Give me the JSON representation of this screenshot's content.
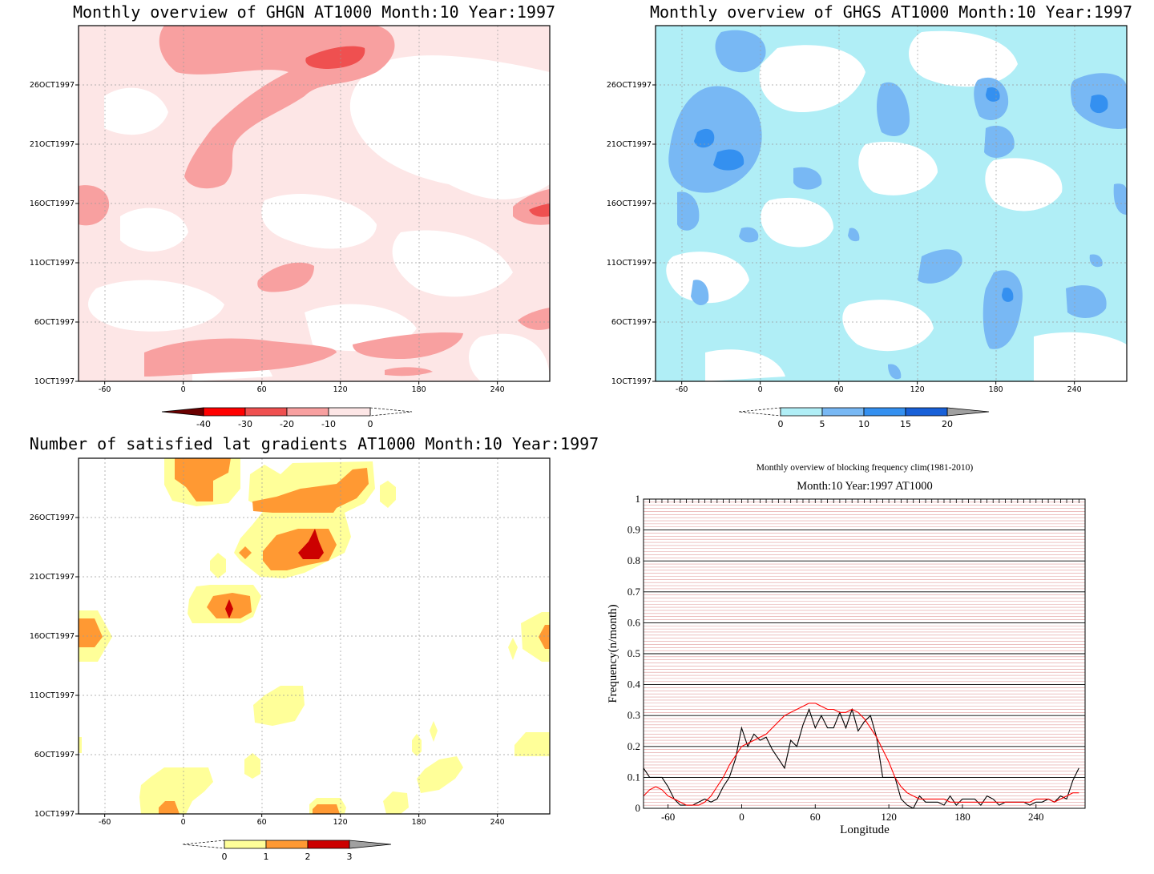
{
  "chart_data": [
    {
      "type": "heatmap",
      "title": "Monthly overview of GHGN AT1000 Month:10 Year:1997",
      "xlabel": "",
      "ylabel": "",
      "x_ticks": [
        "-60",
        "0",
        "60",
        "120",
        "180",
        "240"
      ],
      "y_ticks": [
        "1OCT1997",
        "6OCT1997",
        "11OCT1997",
        "16OCT1997",
        "21OCT1997",
        "26OCT1997"
      ],
      "xlim": [
        -80,
        280
      ],
      "ylim": [
        1,
        31
      ],
      "colorbar": {
        "levels": [
          "-40",
          "-30",
          "-20",
          "-10",
          "0"
        ],
        "colors": [
          "#6b0000",
          "#ff0000",
          "#ef5050",
          "#f8a0a0",
          "#fde6e6"
        ]
      },
      "regions": [
        {
          "level": "0 to -10",
          "color": "#fde6e6",
          "coverage": "background"
        },
        {
          "level": "-10 to -20",
          "color": "#f8a0a0",
          "coverage": "diagonal band and patches"
        },
        {
          "level": "-20 to -30",
          "color": "#ef5050",
          "coverage": "small cores near 26-29OCT lon 95-140 and 16OCT lon 260"
        }
      ]
    },
    {
      "type": "heatmap",
      "title": "Monthly overview of GHGS AT1000 Month:10 Year:1997",
      "xlabel": "",
      "ylabel": "",
      "x_ticks": [
        "-60",
        "0",
        "60",
        "120",
        "180",
        "240"
      ],
      "y_ticks": [
        "1OCT1997",
        "6OCT1997",
        "11OCT1997",
        "16OCT1997",
        "21OCT1997",
        "26OCT1997"
      ],
      "xlim": [
        -80,
        280
      ],
      "ylim": [
        1,
        31
      ],
      "colorbar": {
        "levels": [
          "0",
          "5",
          "10",
          "15",
          "20"
        ],
        "colors": [
          "#b0eef6",
          "#78b8f4",
          "#3490f0",
          "#1860d8",
          "#a0a0a0"
        ]
      },
      "regions": [
        {
          "level": "0 to 5",
          "color": "#b0eef6",
          "coverage": "background"
        },
        {
          "level": "5 to 10",
          "color": "#78b8f4",
          "coverage": "scattered patches"
        },
        {
          "level": "10 to 15",
          "color": "#3490f0",
          "coverage": "small cores"
        }
      ]
    },
    {
      "type": "heatmap",
      "title": "Number of satisfied lat gradients AT1000 Month:10 Year:1997",
      "xlabel": "",
      "ylabel": "",
      "x_ticks": [
        "-60",
        "0",
        "60",
        "120",
        "180",
        "240"
      ],
      "y_ticks": [
        "1OCT1997",
        "6OCT1997",
        "11OCT1997",
        "16OCT1997",
        "21OCT1997",
        "26OCT1997"
      ],
      "xlim": [
        -80,
        280
      ],
      "ylim": [
        1,
        31
      ],
      "colorbar": {
        "levels": [
          "0",
          "1",
          "2",
          "3"
        ],
        "colors": [
          "#ffff99",
          "#ff9933",
          "#cc0000",
          "#a0a0a0"
        ]
      },
      "regions": [
        {
          "level": "0 to 1",
          "color": "#ffff99",
          "coverage": "patches"
        },
        {
          "level": "1 to 2",
          "color": "#ff9933",
          "coverage": "cores"
        },
        {
          "level": "2 to 3",
          "color": "#cc0000",
          "coverage": "two small peaks near 24OCT lon 95 and 19OCT lon 35"
        }
      ]
    },
    {
      "type": "line",
      "title": "Monthly overview of blocking frequency clim(1981-2010)",
      "subtitle": "Month:10 Year:1997  AT1000",
      "xlabel": "Longitude",
      "ylabel": "Frequency(n/month)",
      "xlim": [
        -80,
        280
      ],
      "ylim": [
        0,
        1
      ],
      "x_ticks": [
        "-60",
        "0",
        "60",
        "120",
        "180",
        "240"
      ],
      "y_ticks": [
        "0",
        "0.1",
        "0.2",
        "0.3",
        "0.4",
        "0.5",
        "0.6",
        "0.7",
        "0.8",
        "0.9",
        "1"
      ],
      "grid": true,
      "series": [
        {
          "color": "#000000",
          "x": [
            -80,
            -75,
            -70,
            -65,
            -60,
            -55,
            -50,
            -45,
            -40,
            -35,
            -30,
            -25,
            -20,
            -15,
            -10,
            -5,
            0,
            5,
            10,
            15,
            20,
            25,
            30,
            35,
            40,
            45,
            50,
            55,
            60,
            65,
            70,
            75,
            80,
            85,
            90,
            95,
            100,
            105,
            110,
            115,
            120,
            125,
            130,
            135,
            140,
            145,
            150,
            155,
            160,
            165,
            170,
            175,
            180,
            185,
            190,
            195,
            200,
            205,
            210,
            215,
            220,
            225,
            230,
            235,
            240,
            245,
            250,
            255,
            260,
            265,
            270,
            275
          ],
          "y": [
            0.13,
            0.1,
            0.1,
            0.1,
            0.07,
            0.03,
            0.01,
            0.01,
            0.01,
            0.02,
            0.03,
            0.02,
            0.03,
            0.07,
            0.1,
            0.16,
            0.26,
            0.2,
            0.24,
            0.22,
            0.23,
            0.19,
            0.16,
            0.13,
            0.22,
            0.2,
            0.27,
            0.32,
            0.26,
            0.3,
            0.26,
            0.26,
            0.31,
            0.26,
            0.32,
            0.25,
            0.28,
            0.3,
            0.23,
            0.1,
            0.1,
            0.1,
            0.03,
            0.01,
            0.0,
            0.04,
            0.02,
            0.02,
            0.02,
            0.01,
            0.04,
            0.01,
            0.03,
            0.03,
            0.03,
            0.01,
            0.04,
            0.03,
            0.01,
            0.02,
            0.02,
            0.02,
            0.02,
            0.01,
            0.02,
            0.02,
            0.03,
            0.02,
            0.04,
            0.03,
            0.09,
            0.13
          ]
        },
        {
          "color": "#ff0000",
          "x": [
            -80,
            -75,
            -70,
            -65,
            -60,
            -55,
            -50,
            -45,
            -40,
            -35,
            -30,
            -25,
            -20,
            -15,
            -10,
            -5,
            0,
            5,
            10,
            15,
            20,
            25,
            30,
            35,
            40,
            45,
            50,
            55,
            60,
            65,
            70,
            75,
            80,
            85,
            90,
            95,
            100,
            105,
            110,
            115,
            120,
            125,
            130,
            135,
            140,
            145,
            150,
            155,
            160,
            165,
            170,
            175,
            180,
            185,
            190,
            195,
            200,
            205,
            210,
            215,
            220,
            225,
            230,
            235,
            240,
            245,
            250,
            255,
            260,
            265,
            270,
            275
          ],
          "y": [
            0.04,
            0.06,
            0.07,
            0.06,
            0.04,
            0.03,
            0.02,
            0.01,
            0.01,
            0.01,
            0.02,
            0.04,
            0.07,
            0.1,
            0.14,
            0.17,
            0.2,
            0.21,
            0.22,
            0.23,
            0.24,
            0.26,
            0.28,
            0.3,
            0.31,
            0.32,
            0.33,
            0.34,
            0.34,
            0.33,
            0.32,
            0.32,
            0.31,
            0.31,
            0.32,
            0.31,
            0.29,
            0.26,
            0.23,
            0.19,
            0.15,
            0.1,
            0.07,
            0.05,
            0.04,
            0.03,
            0.03,
            0.03,
            0.03,
            0.03,
            0.02,
            0.02,
            0.02,
            0.02,
            0.02,
            0.02,
            0.02,
            0.02,
            0.02,
            0.02,
            0.02,
            0.02,
            0.02,
            0.02,
            0.03,
            0.03,
            0.03,
            0.02,
            0.03,
            0.04,
            0.05,
            0.05
          ]
        }
      ]
    }
  ]
}
